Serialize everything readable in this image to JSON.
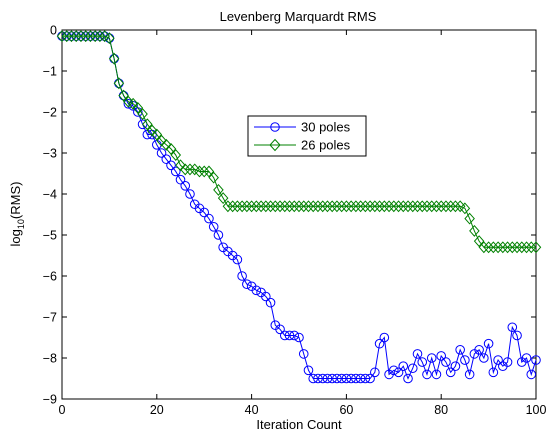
{
  "chart_data": {
    "type": "line",
    "title": "Levenberg Marquardt RMS",
    "xlabel": "Iteration Count",
    "ylabel_main": "log",
    "ylabel_sub": "10",
    "ylabel_rest": "(RMS)",
    "xlim": [
      0,
      100
    ],
    "ylim": [
      -9,
      0
    ],
    "xticks": [
      0,
      20,
      40,
      60,
      80,
      100
    ],
    "yticks": [
      0,
      -1,
      -2,
      -3,
      -4,
      -5,
      -6,
      -7,
      -8,
      -9
    ],
    "xtick_labels": [
      "0",
      "20",
      "40",
      "60",
      "80",
      "100"
    ],
    "ytick_labels": [
      "0",
      "−1",
      "−2",
      "−3",
      "−4",
      "−5",
      "−6",
      "−7",
      "−8",
      "−9"
    ],
    "grid": false,
    "legend_position": "center",
    "series": [
      {
        "name": "30 poles",
        "color": "#0000ff",
        "marker": "circle",
        "x": [
          0,
          1,
          2,
          3,
          4,
          5,
          6,
          7,
          8,
          9,
          10,
          11,
          12,
          13,
          14,
          15,
          16,
          17,
          18,
          19,
          20,
          21,
          22,
          23,
          24,
          25,
          26,
          27,
          28,
          29,
          30,
          31,
          32,
          33,
          34,
          35,
          36,
          37,
          38,
          39,
          40,
          41,
          42,
          43,
          44,
          45,
          46,
          47,
          48,
          49,
          50,
          51,
          52,
          53,
          54,
          55,
          56,
          57,
          58,
          59,
          60,
          61,
          62,
          63,
          64,
          65,
          66,
          67,
          68,
          69,
          70,
          71,
          72,
          73,
          74,
          75,
          76,
          77,
          78,
          79,
          80,
          81,
          82,
          83,
          84,
          85,
          86,
          87,
          88,
          89,
          90,
          91,
          92,
          93,
          94,
          95,
          96,
          97,
          98,
          99,
          100
        ],
        "y": [
          -0.15,
          -0.15,
          -0.15,
          -0.15,
          -0.15,
          -0.15,
          -0.15,
          -0.15,
          -0.15,
          -0.15,
          -0.2,
          -0.7,
          -1.3,
          -1.6,
          -1.8,
          -1.85,
          -2.0,
          -2.3,
          -2.55,
          -2.55,
          -2.8,
          -3.0,
          -3.15,
          -3.3,
          -3.45,
          -3.65,
          -3.8,
          -4.0,
          -4.25,
          -4.35,
          -4.45,
          -4.6,
          -4.8,
          -5.0,
          -5.3,
          -5.4,
          -5.5,
          -5.6,
          -6.0,
          -6.2,
          -6.25,
          -6.35,
          -6.4,
          -6.5,
          -6.65,
          -7.2,
          -7.3,
          -7.45,
          -7.45,
          -7.45,
          -7.5,
          -7.9,
          -8.3,
          -8.5,
          -8.5,
          -8.5,
          -8.5,
          -8.5,
          -8.5,
          -8.5,
          -8.5,
          -8.5,
          -8.5,
          -8.5,
          -8.5,
          -8.5,
          -8.35,
          -7.65,
          -7.5,
          -8.4,
          -8.3,
          -8.35,
          -8.2,
          -8.5,
          -8.25,
          -7.9,
          -8.1,
          -8.4,
          -8.0,
          -8.4,
          -7.95,
          -8.1,
          -8.35,
          -8.2,
          -7.8,
          -8.05,
          -8.4,
          -7.9,
          -7.8,
          -8.0,
          -7.65,
          -8.35,
          -8.05,
          -8.2,
          -8.1,
          -7.25,
          -7.45,
          -8.1,
          -8.0,
          -8.4,
          -8.05
        ]
      },
      {
        "name": "26 poles",
        "color": "#008000",
        "marker": "diamond",
        "x": [
          0,
          1,
          2,
          3,
          4,
          5,
          6,
          7,
          8,
          9,
          10,
          11,
          12,
          13,
          14,
          15,
          16,
          17,
          18,
          19,
          20,
          21,
          22,
          23,
          24,
          25,
          26,
          27,
          28,
          29,
          30,
          31,
          32,
          33,
          34,
          35,
          36,
          37,
          38,
          39,
          40,
          41,
          42,
          43,
          44,
          45,
          46,
          47,
          48,
          49,
          50,
          51,
          52,
          53,
          54,
          55,
          56,
          57,
          58,
          59,
          60,
          61,
          62,
          63,
          64,
          65,
          66,
          67,
          68,
          69,
          70,
          71,
          72,
          73,
          74,
          75,
          76,
          77,
          78,
          79,
          80,
          81,
          82,
          83,
          84,
          85,
          86,
          87,
          88,
          89,
          90,
          91,
          92,
          93,
          94,
          95,
          96,
          97,
          98,
          99,
          100
        ],
        "y": [
          -0.15,
          -0.15,
          -0.15,
          -0.15,
          -0.15,
          -0.15,
          -0.15,
          -0.15,
          -0.15,
          -0.15,
          -0.2,
          -0.7,
          -1.3,
          -1.6,
          -1.75,
          -1.8,
          -1.9,
          -2.05,
          -2.3,
          -2.45,
          -2.55,
          -2.7,
          -2.8,
          -2.9,
          -3.05,
          -3.3,
          -3.4,
          -3.4,
          -3.4,
          -3.45,
          -3.45,
          -3.45,
          -3.6,
          -3.9,
          -4.1,
          -4.3,
          -4.3,
          -4.3,
          -4.3,
          -4.3,
          -4.3,
          -4.3,
          -4.3,
          -4.3,
          -4.3,
          -4.3,
          -4.3,
          -4.3,
          -4.3,
          -4.3,
          -4.3,
          -4.3,
          -4.3,
          -4.3,
          -4.3,
          -4.3,
          -4.3,
          -4.3,
          -4.3,
          -4.3,
          -4.3,
          -4.3,
          -4.3,
          -4.3,
          -4.3,
          -4.3,
          -4.3,
          -4.3,
          -4.3,
          -4.3,
          -4.3,
          -4.3,
          -4.3,
          -4.3,
          -4.3,
          -4.3,
          -4.3,
          -4.3,
          -4.3,
          -4.3,
          -4.3,
          -4.3,
          -4.3,
          -4.3,
          -4.3,
          -4.35,
          -4.6,
          -4.9,
          -5.15,
          -5.3,
          -5.3,
          -5.3,
          -5.3,
          -5.3,
          -5.3,
          -5.3,
          -5.3,
          -5.3,
          -5.3,
          -5.3,
          -5.3
        ]
      }
    ]
  }
}
